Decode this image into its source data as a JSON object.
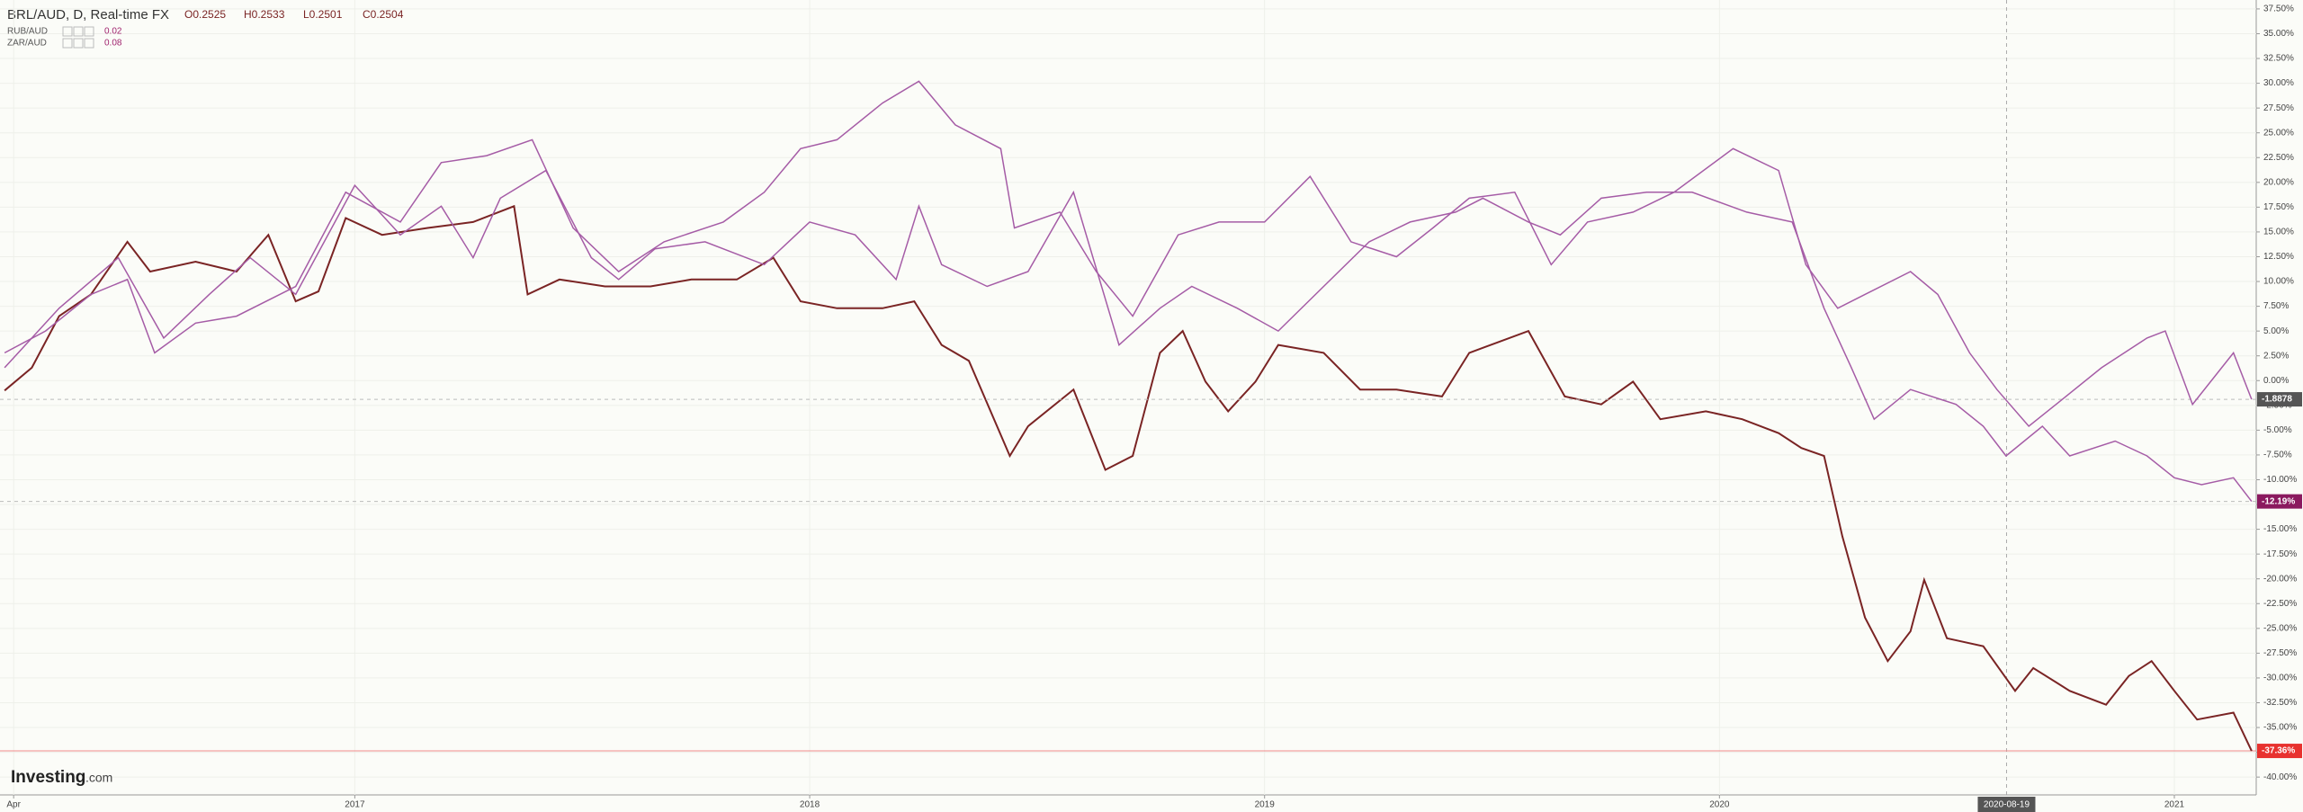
{
  "chart_data": {
    "type": "line",
    "title": "BRL/AUD, D, Real-time FX",
    "ohlc": [
      "O0.2525",
      "H0.2533",
      "L0.2501",
      "C0.2504"
    ],
    "watermark": [
      "Investing",
      ".com"
    ],
    "crosshair": "2020-08-19",
    "xlim": [
      2016.22,
      2021.18
    ],
    "xticks": [
      {
        "value": 2016.25,
        "label": "Apr"
      },
      2017,
      2018,
      2019,
      2020,
      2021
    ],
    "ylim": [
      -41.8,
      38.4
    ],
    "yticks": [
      {
        "value": 37.5,
        "label": "37.50%"
      },
      {
        "value": 35,
        "label": "35.00%"
      },
      {
        "value": 32.5,
        "label": "32.50%"
      },
      {
        "value": 30,
        "label": "30.00%"
      },
      {
        "value": 27.5,
        "label": "27.50%"
      },
      {
        "value": 25,
        "label": "25.00%"
      },
      {
        "value": 22.5,
        "label": "22.50%"
      },
      {
        "value": 20,
        "label": "20.00%"
      },
      {
        "value": 17.5,
        "label": "17.50%"
      },
      {
        "value": 15,
        "label": "15.00%"
      },
      {
        "value": 12.5,
        "label": "12.50%"
      },
      {
        "value": 10,
        "label": "10.00%"
      },
      {
        "value": 7.5,
        "label": "7.50%"
      },
      {
        "value": 5,
        "label": "5.00%"
      },
      {
        "value": 2.5,
        "label": "2.50%"
      },
      {
        "value": 0,
        "label": "0.00%"
      },
      {
        "value": -2.5,
        "label": "-2.50%"
      },
      {
        "value": -5,
        "label": "-5.00%"
      },
      {
        "value": -7.5,
        "label": "-7.50%"
      },
      {
        "value": -10,
        "label": "-10.00%"
      },
      {
        "value": -12.5,
        "label": "-12.50%"
      },
      {
        "value": -15,
        "label": "-15.00%"
      },
      {
        "value": -17.5,
        "label": "-17.50%"
      },
      {
        "value": -20,
        "label": "-20.00%"
      },
      {
        "value": -22.5,
        "label": "-22.50%"
      },
      {
        "value": -25,
        "label": "-25.00%"
      },
      {
        "value": -27.5,
        "label": "-27.50%"
      },
      {
        "value": -30,
        "label": "-30.00%"
      },
      {
        "value": -32.5,
        "label": "-32.50%"
      },
      {
        "value": -35,
        "label": "-35.00%"
      },
      {
        "value": -37.5,
        "label": "-37.50%"
      },
      {
        "value": -40,
        "label": "-40.00%"
      }
    ],
    "grid": true,
    "series": [
      {
        "color": "#7a2424",
        "label_color": "#e8322f",
        "end_label": "-37.36%",
        "x": [
          2016.23,
          2016.29,
          2016.35,
          2016.42,
          2016.5,
          2016.55,
          2016.65,
          2016.74,
          2016.81,
          2016.87,
          2016.92,
          2016.98,
          2017.06,
          2017.16,
          2017.26,
          2017.35,
          2017.38,
          2017.45,
          2017.55,
          2017.65,
          2017.74,
          2017.84,
          2017.92,
          2017.98,
          2018.06,
          2018.16,
          2018.23,
          2018.29,
          2018.35,
          2018.44,
          2018.48,
          2018.58,
          2018.65,
          2018.71,
          2018.77,
          2018.82,
          2018.87,
          2018.92,
          2018.98,
          2019.03,
          2019.13,
          2019.21,
          2019.29,
          2019.39,
          2019.45,
          2019.58,
          2019.66,
          2019.74,
          2019.81,
          2019.87,
          2019.97,
          2020.05,
          2020.13,
          2020.18,
          2020.23,
          2020.27,
          2020.32,
          2020.37,
          2020.42,
          2020.45,
          2020.5,
          2020.58,
          2020.65,
          2020.69,
          2020.77,
          2020.85,
          2020.9,
          2020.95,
          2021.0,
          2021.05,
          2021.13,
          2021.17
        ],
        "values": [
          -1,
          1.3,
          6.5,
          8.7,
          14,
          11,
          12,
          11,
          14.7,
          8,
          9,
          16.4,
          14.7,
          15.4,
          16,
          17.6,
          8.7,
          10.2,
          9.5,
          9.5,
          10.2,
          10.2,
          12.4,
          8,
          7.3,
          7.3,
          8,
          3.6,
          2,
          -7.6,
          -4.6,
          -0.9,
          -9,
          -7.6,
          2.8,
          5,
          -0.1,
          -3.1,
          -0.1,
          3.6,
          2.8,
          -0.9,
          -0.9,
          -1.6,
          2.8,
          5,
          -1.6,
          -2.4,
          -0.1,
          -3.9,
          -3.1,
          -3.9,
          -5.3,
          -6.8,
          -7.6,
          -15.7,
          -23.9,
          -28.3,
          -25.3,
          -20.1,
          -26,
          -26.8,
          -31.3,
          -29,
          -31.3,
          -32.7,
          -29.8,
          -28.3,
          -31.3,
          -34.2,
          -33.5,
          -37.36
        ]
      },
      {
        "name": "RUB/AUD",
        "legend_value": "0.02",
        "color": "#a55ca6",
        "label_color": "#555555",
        "end_label": "-1.8878",
        "x": [
          2016.23,
          2016.32,
          2016.42,
          2016.5,
          2016.56,
          2016.65,
          2016.74,
          2016.87,
          2016.98,
          2017.1,
          2017.19,
          2017.29,
          2017.39,
          2017.48,
          2017.58,
          2017.68,
          2017.81,
          2017.9,
          2017.98,
          2018.06,
          2018.16,
          2018.24,
          2018.32,
          2018.42,
          2018.45,
          2018.55,
          2018.63,
          2018.71,
          2018.81,
          2018.9,
          2019.0,
          2019.1,
          2019.19,
          2019.29,
          2019.37,
          2019.45,
          2019.55,
          2019.63,
          2019.71,
          2019.81,
          2019.9,
          2020.03,
          2020.13,
          2020.19,
          2020.26,
          2020.32,
          2020.42,
          2020.48,
          2020.55,
          2020.61,
          2020.68,
          2020.74,
          2020.84,
          2020.94,
          2020.98,
          2021.04,
          2021.13,
          2021.17
        ],
        "values": [
          2.8,
          5,
          8.7,
          10.2,
          2.8,
          5.8,
          6.5,
          9.5,
          19,
          16,
          22,
          22.7,
          24.3,
          15.4,
          11,
          14,
          16,
          19,
          23.4,
          24.3,
          28,
          30.2,
          25.8,
          23.4,
          15.4,
          17,
          11,
          6.5,
          14.7,
          16,
          16,
          20.6,
          14,
          12.5,
          15.4,
          18.4,
          19,
          11.7,
          16,
          17,
          19,
          23.4,
          21.2,
          11.7,
          7.3,
          8.7,
          11,
          8.7,
          2.8,
          -0.9,
          -4.6,
          -2.4,
          1.3,
          4.3,
          5,
          -2.4,
          2.8,
          -1.8878
        ]
      },
      {
        "name": "ZAR/AUD",
        "legend_value": "0.08",
        "color": "#a55ca6",
        "label_color": "#8b1a5f",
        "end_label": "-12.19%",
        "x": [
          2016.23,
          2016.35,
          2016.48,
          2016.58,
          2016.68,
          2016.77,
          2016.87,
          2017.0,
          2017.1,
          2017.19,
          2017.26,
          2017.32,
          2017.42,
          2017.52,
          2017.58,
          2017.66,
          2017.77,
          2017.9,
          2018.0,
          2018.1,
          2018.19,
          2018.24,
          2018.29,
          2018.39,
          2018.48,
          2018.58,
          2018.68,
          2018.77,
          2018.84,
          2018.94,
          2019.03,
          2019.13,
          2019.23,
          2019.32,
          2019.42,
          2019.48,
          2019.58,
          2019.65,
          2019.74,
          2019.84,
          2019.94,
          2020.06,
          2020.16,
          2020.23,
          2020.29,
          2020.34,
          2020.42,
          2020.52,
          2020.58,
          2020.63,
          2020.71,
          2020.77,
          2020.87,
          2020.94,
          2021.0,
          2021.06,
          2021.13,
          2021.17
        ],
        "values": [
          1.3,
          7.3,
          12.4,
          4.3,
          8.7,
          12.4,
          8.7,
          19.7,
          14.7,
          17.6,
          12.4,
          18.4,
          21.2,
          12.4,
          10.2,
          13.3,
          14,
          11.7,
          16,
          14.7,
          10.2,
          17.6,
          11.7,
          9.5,
          11,
          19,
          3.6,
          7.3,
          9.5,
          7.3,
          5,
          9.5,
          14,
          16,
          17,
          18.4,
          16,
          14.7,
          18.4,
          19,
          19,
          17,
          16,
          7.3,
          1.3,
          -3.9,
          -0.9,
          -2.4,
          -4.6,
          -7.6,
          -4.6,
          -7.6,
          -6.1,
          -7.6,
          -9.8,
          -10.5,
          -9.8,
          -12.19
        ]
      }
    ]
  }
}
